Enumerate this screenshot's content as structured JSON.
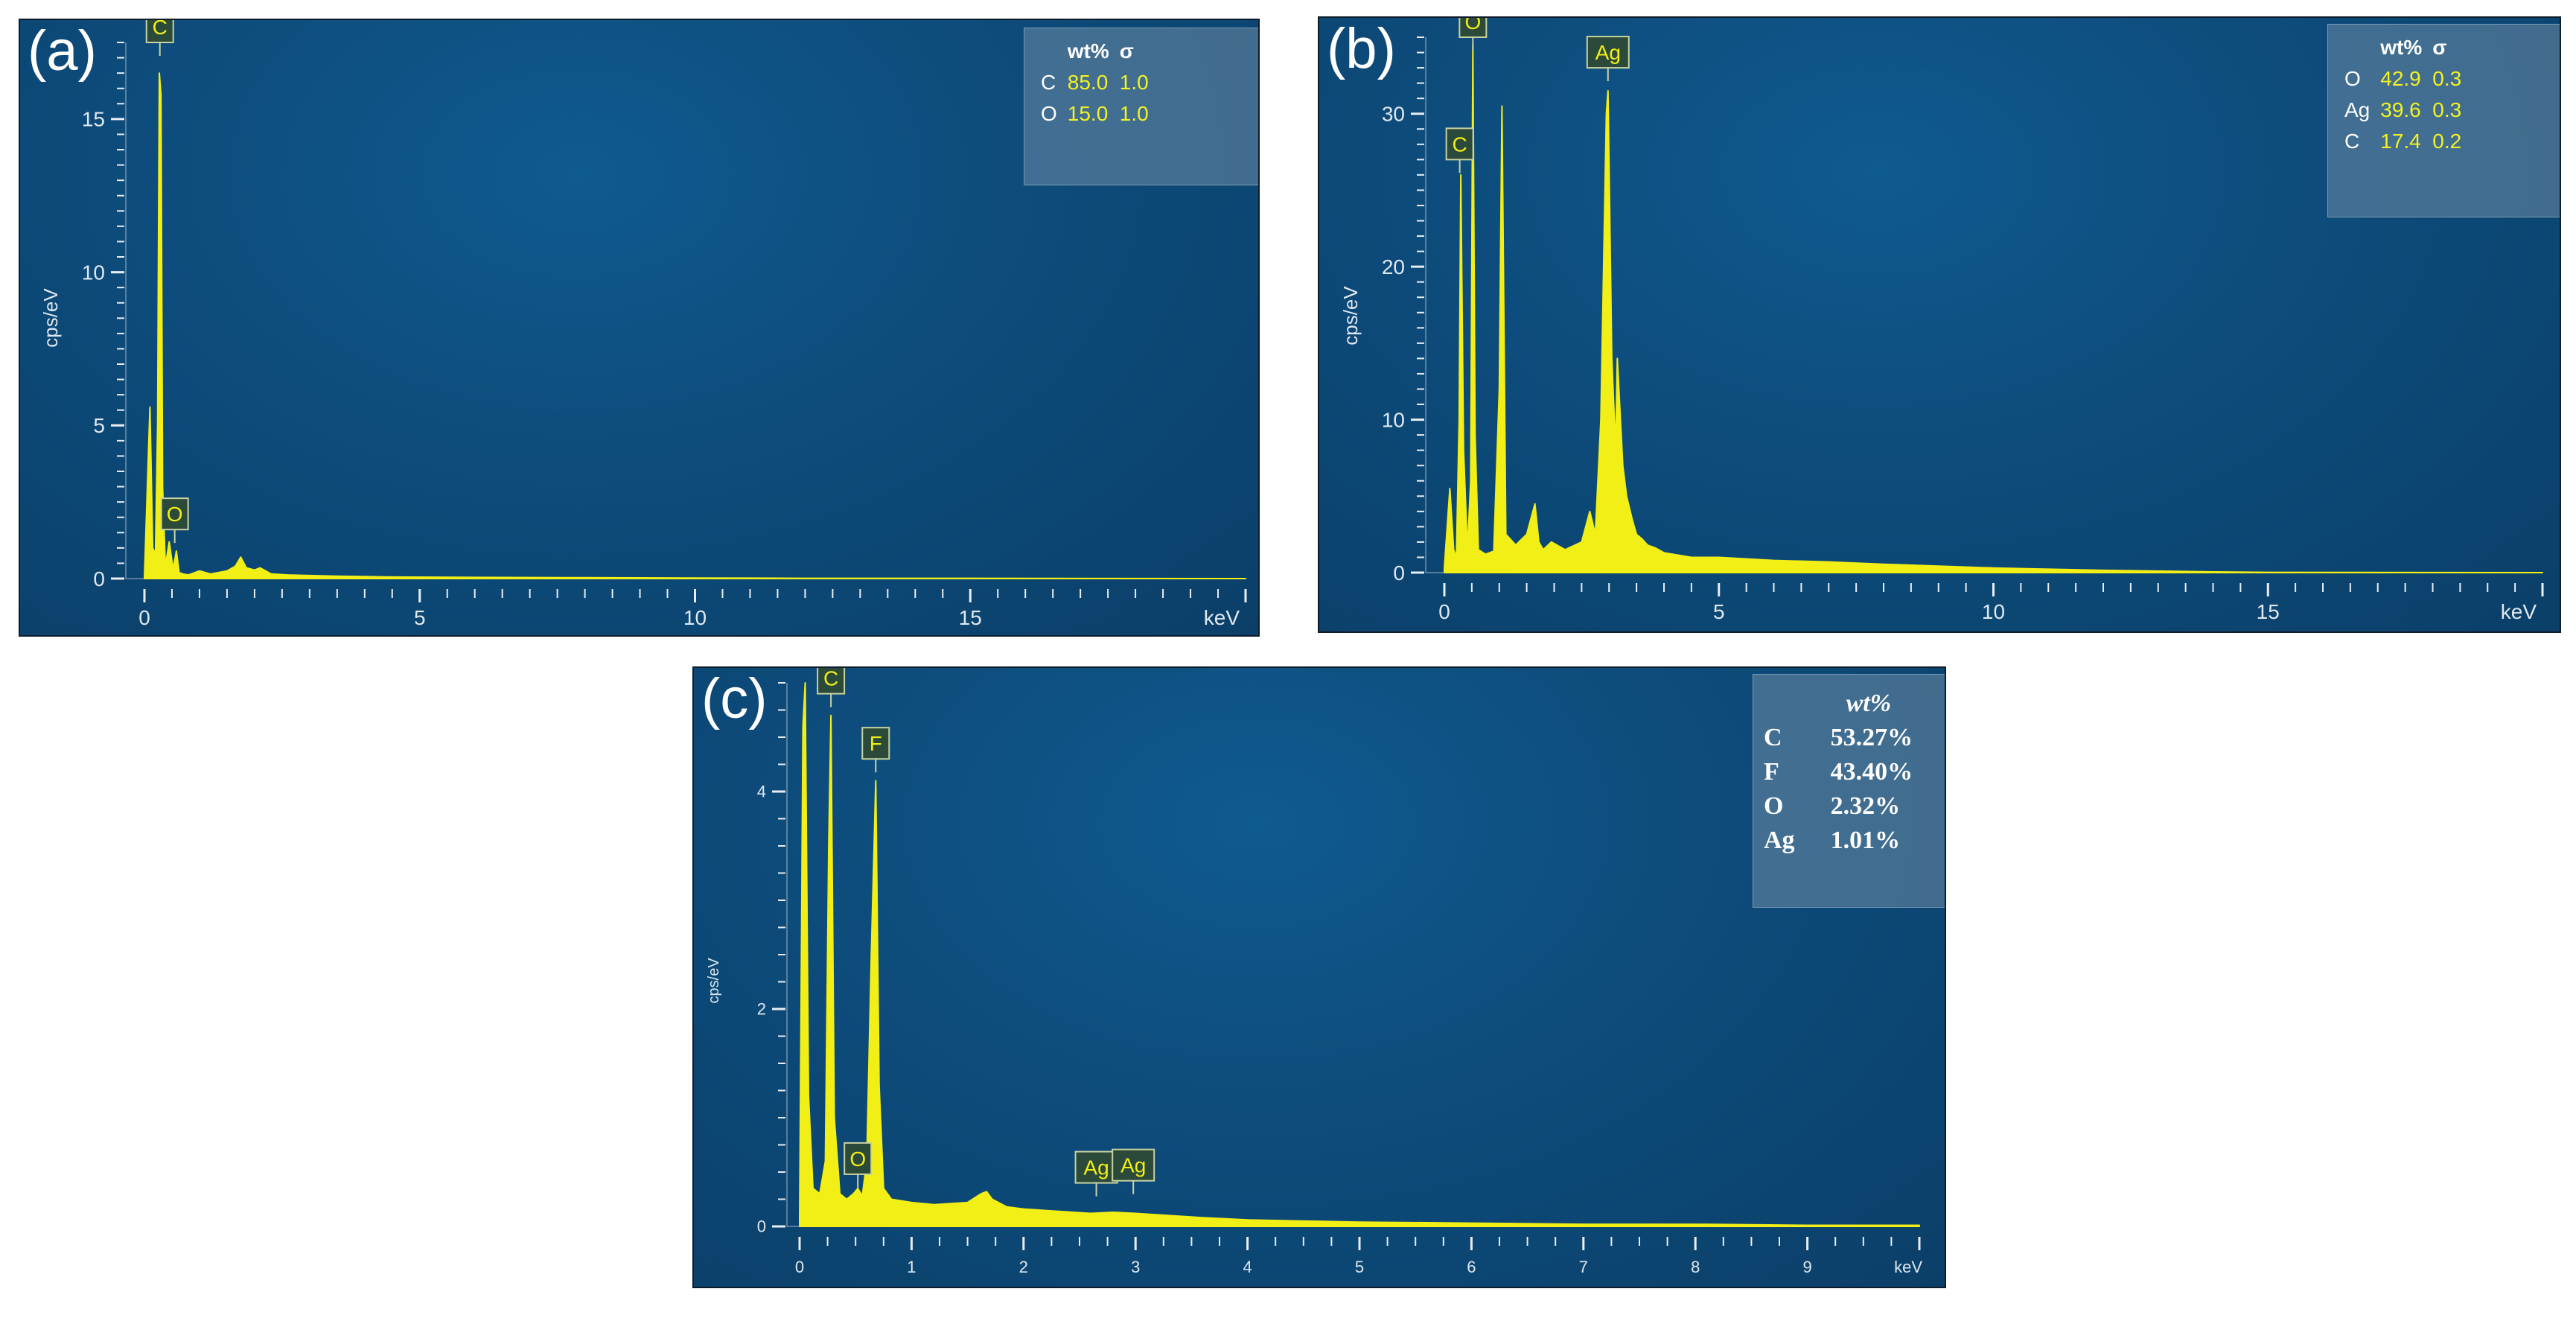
{
  "chart_data": [
    {
      "type": "line",
      "panel_label": "(a)",
      "ylabel": "cps/eV",
      "xlabel": "keV",
      "xlim": [
        0,
        20
      ],
      "ylim": [
        0,
        17.5
      ],
      "x_ticks": [
        "0",
        "5",
        "10",
        "15"
      ],
      "y_ticks": [
        "0",
        "5",
        "10",
        "15"
      ],
      "peak_labels": [
        {
          "element": "C",
          "x": 0.28,
          "y": 17.5
        },
        {
          "element": "O",
          "x": 0.55,
          "y": 1.6
        }
      ],
      "series": [
        {
          "x": [
            0.0,
            0.1,
            0.15,
            0.2,
            0.24,
            0.27,
            0.3,
            0.33,
            0.38,
            0.45,
            0.52,
            0.58,
            0.63,
            0.7,
            0.8,
            1.0,
            1.2,
            1.5,
            1.65,
            1.75,
            1.85,
            2.0,
            2.1,
            2.3,
            2.6,
            3.0,
            3.5,
            4.5,
            6,
            8,
            10,
            12,
            15,
            20
          ],
          "y": [
            0.05,
            5.6,
            1.0,
            0.8,
            5.0,
            16.5,
            15.8,
            3.0,
            0.4,
            1.2,
            0.3,
            0.9,
            0.2,
            0.15,
            0.12,
            0.25,
            0.15,
            0.25,
            0.4,
            0.7,
            0.35,
            0.28,
            0.35,
            0.15,
            0.12,
            0.1,
            0.08,
            0.05,
            0.04,
            0.03,
            0.02,
            0.01,
            0.01,
            0.0
          ]
        }
      ],
      "table": {
        "headers": [
          "",
          "wt%",
          "σ"
        ],
        "rows": [
          [
            "C",
            "85.0",
            "1.0"
          ],
          [
            "O",
            "15.0",
            "1.0"
          ]
        ]
      }
    },
    {
      "type": "line",
      "panel_label": "(b)",
      "ylabel": "cps/eV",
      "xlabel": "keV",
      "xlim": [
        0,
        20
      ],
      "ylim": [
        0,
        35
      ],
      "x_ticks": [
        "0",
        "5",
        "10",
        "15"
      ],
      "y_ticks": [
        "0",
        "10",
        "20",
        "30"
      ],
      "peak_labels": [
        {
          "element": "O",
          "x": 0.52,
          "y": 35
        },
        {
          "element": "C",
          "x": 0.28,
          "y": 27
        },
        {
          "element": "Ag",
          "x": 2.98,
          "y": 33
        }
      ],
      "series": [
        {
          "x": [
            0.0,
            0.1,
            0.17,
            0.22,
            0.27,
            0.3,
            0.35,
            0.42,
            0.48,
            0.52,
            0.56,
            0.62,
            0.75,
            0.9,
            1.0,
            1.05,
            1.12,
            1.3,
            1.5,
            1.65,
            1.72,
            1.8,
            1.95,
            2.2,
            2.5,
            2.65,
            2.75,
            2.85,
            2.95,
            2.98,
            3.05,
            3.12,
            3.15,
            3.25,
            3.32,
            3.42,
            3.5,
            3.6,
            3.7,
            3.85,
            4.0,
            4.5,
            5,
            6,
            7,
            8,
            10,
            12,
            14,
            15,
            20
          ],
          "y": [
            0.3,
            5.5,
            1.5,
            1.0,
            10.0,
            26.0,
            8.0,
            1.5,
            6.0,
            34.5,
            9.0,
            1.5,
            1.2,
            1.4,
            12.0,
            30.5,
            2.5,
            1.8,
            2.5,
            4.5,
            2.0,
            1.5,
            2.0,
            1.5,
            2.0,
            4.0,
            2.5,
            10.0,
            30.0,
            31.5,
            14.0,
            8.0,
            14.0,
            7.0,
            5.0,
            3.5,
            2.5,
            2.2,
            1.8,
            1.6,
            1.3,
            1.0,
            1.0,
            0.8,
            0.7,
            0.55,
            0.3,
            0.15,
            0.05,
            0.02,
            0.0
          ]
        }
      ],
      "table": {
        "headers": [
          "",
          "wt%",
          "σ"
        ],
        "rows": [
          [
            "O",
            "42.9",
            "0.3"
          ],
          [
            "Ag",
            "39.6",
            "0.3"
          ],
          [
            "C",
            "17.4",
            "0.2"
          ]
        ]
      }
    },
    {
      "type": "line",
      "panel_label": "(c)",
      "ylabel": "cps/eV",
      "xlabel": "keV",
      "xlim": [
        0,
        10
      ],
      "ylim": [
        0,
        5
      ],
      "x_ticks": [
        "0",
        "1",
        "2",
        "3",
        "4",
        "5",
        "6",
        "7",
        "8",
        "9"
      ],
      "y_ticks": [
        "0",
        "2",
        "4"
      ],
      "peak_labels": [
        {
          "element": "C",
          "x": 0.28,
          "y": 4.9
        },
        {
          "element": "F",
          "x": 0.68,
          "y": 4.3
        },
        {
          "element": "O",
          "x": 0.52,
          "y": 0.48
        },
        {
          "element": "Ag",
          "x": 2.65,
          "y": 0.4
        },
        {
          "element": "Ag",
          "x": 2.98,
          "y": 0.42
        }
      ],
      "series": [
        {
          "x": [
            0.0,
            0.03,
            0.05,
            0.08,
            0.12,
            0.18,
            0.23,
            0.26,
            0.28,
            0.31,
            0.36,
            0.42,
            0.48,
            0.52,
            0.56,
            0.6,
            0.64,
            0.68,
            0.71,
            0.75,
            0.82,
            1.0,
            1.2,
            1.5,
            1.62,
            1.67,
            1.72,
            1.85,
            2.0,
            2.3,
            2.6,
            2.8,
            3.0,
            3.3,
            3.6,
            4.0,
            4.5,
            5.0,
            6.0,
            7.0,
            8.0,
            9.0,
            10.0
          ],
          "y": [
            0.05,
            4.6,
            5.0,
            1.2,
            0.35,
            0.3,
            0.6,
            3.5,
            4.7,
            1.0,
            0.3,
            0.25,
            0.3,
            0.35,
            0.28,
            0.6,
            2.5,
            4.1,
            1.3,
            0.35,
            0.25,
            0.22,
            0.2,
            0.22,
            0.3,
            0.32,
            0.25,
            0.18,
            0.16,
            0.14,
            0.12,
            0.13,
            0.12,
            0.1,
            0.08,
            0.06,
            0.05,
            0.04,
            0.03,
            0.02,
            0.02,
            0.01,
            0.01
          ]
        }
      ],
      "table": {
        "headers": [
          "",
          "wt%"
        ],
        "rows": [
          [
            "C",
            "53.27%"
          ],
          [
            "F",
            "43.40%"
          ],
          [
            "O",
            "2.32%"
          ],
          [
            "Ag",
            "1.01%"
          ]
        ]
      }
    }
  ]
}
